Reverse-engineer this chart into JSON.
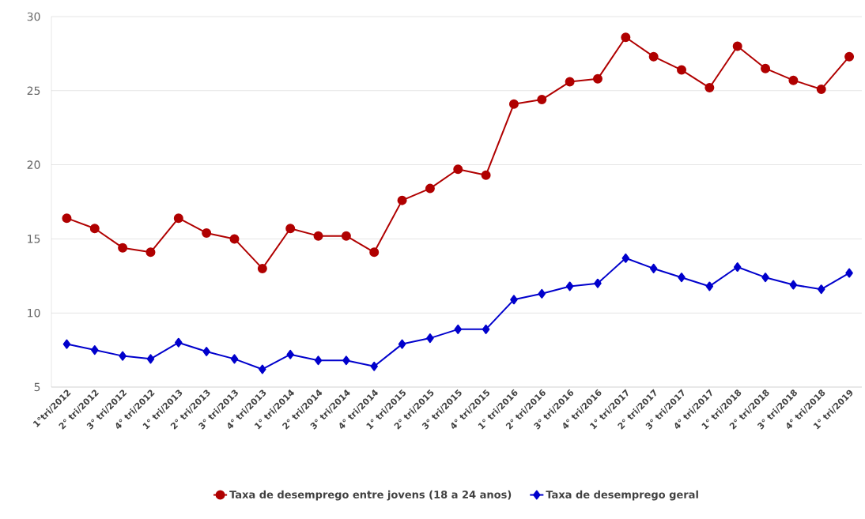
{
  "chart_data": {
    "type": "line",
    "categories": [
      "1°tri/2012",
      "2° tri/2012",
      "3° tri/2012",
      "4° tri/2012",
      "1° tri/2013",
      "2° tri/2013",
      "3° tri/2013",
      "4° tri/2013",
      "1° tri/2014",
      "2° tri/2014",
      "3° tri/2014",
      "4° tri/2014",
      "1° tri/2015",
      "2° tri/2015",
      "3° tri/2015",
      "4° tri/2015",
      "1° tri/2016",
      "2° tri/2016",
      "3° tri/2016",
      "4° tri/2016",
      "1° tri/2017",
      "2° tri/2017",
      "3° tri/2017",
      "4° tri/2017",
      "1° tri/2018",
      "2° tri/2018",
      "3° tri/2018",
      "4° tri/2018",
      "1° tri/2019"
    ],
    "series": [
      {
        "name": "Taxa de desemprego entre jovens (18 a 24 anos)",
        "color": "#b00000",
        "marker": "circle",
        "values": [
          16.4,
          15.7,
          14.4,
          14.1,
          16.4,
          15.4,
          15.0,
          13.0,
          15.7,
          15.2,
          15.2,
          14.1,
          17.6,
          18.4,
          19.7,
          19.3,
          24.1,
          24.4,
          25.6,
          25.8,
          28.6,
          27.3,
          26.4,
          25.2,
          28.0,
          26.5,
          25.7,
          25.1,
          27.3
        ]
      },
      {
        "name": "Taxa de desemprego geral",
        "color": "#0000cc",
        "marker": "diamond",
        "values": [
          7.9,
          7.5,
          7.1,
          6.9,
          8.0,
          7.4,
          6.9,
          6.2,
          7.2,
          6.8,
          6.8,
          6.4,
          7.9,
          8.3,
          8.9,
          8.9,
          10.9,
          11.3,
          11.8,
          12.0,
          13.7,
          13.0,
          12.4,
          11.8,
          13.1,
          12.4,
          11.9,
          11.6,
          12.7
        ]
      }
    ],
    "ylim": [
      5,
      30
    ],
    "yticks": [
      5,
      10,
      15,
      20,
      25,
      30
    ],
    "grid": "y",
    "legend": "bottom",
    "line_style": "solid"
  }
}
